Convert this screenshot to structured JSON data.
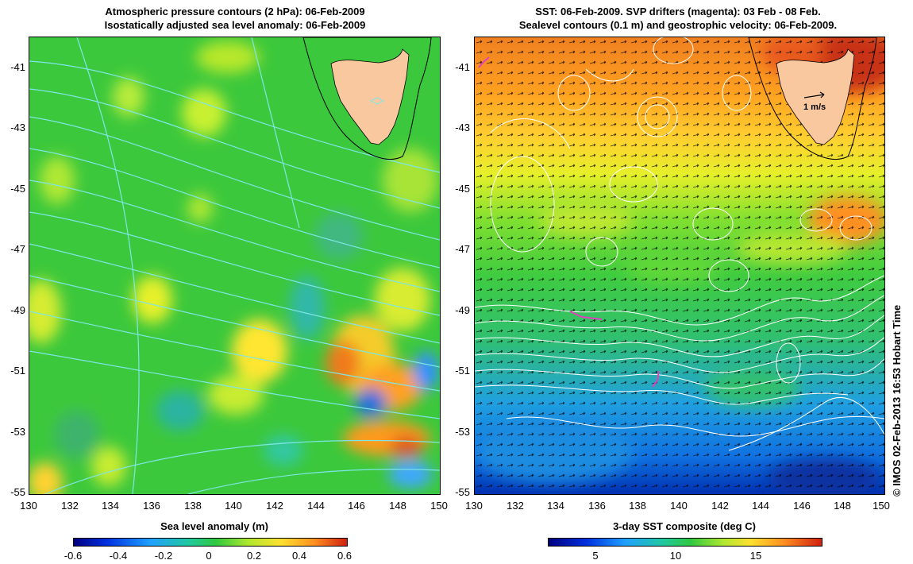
{
  "left_panel": {
    "title_line1": "Atmospheric pressure contours (2 hPa): 06-Feb-2009",
    "title_line2": "Isostatically adjusted sea level anomaly: 06-Feb-2009",
    "y_ticks": [
      "-41",
      "-43",
      "-45",
      "-47",
      "-49",
      "-51",
      "-53",
      "-55"
    ],
    "x_ticks": [
      "130",
      "132",
      "134",
      "136",
      "138",
      "140",
      "142",
      "144",
      "146",
      "148",
      "150"
    ],
    "colorbar_label": "Sea level anomaly (m)",
    "colorbar_ticks": [
      "-0.6",
      "-0.4",
      "-0.2",
      "0",
      "0.2",
      "0.4",
      "0.6"
    ],
    "colorbar_range": [
      -0.6,
      0.6
    ]
  },
  "right_panel": {
    "title_line1": "SST: 06-Feb-2009. SVP drifters (magenta): 03 Feb - 08 Feb.",
    "title_line2": "Sealevel contours (0.1 m) and geostrophic velocity: 06-Feb-2009.",
    "y_ticks": [
      "-41",
      "-43",
      "-45",
      "-47",
      "-49",
      "-51",
      "-53",
      "-55"
    ],
    "x_ticks": [
      "130",
      "132",
      "134",
      "136",
      "138",
      "140",
      "142",
      "144",
      "146",
      "148",
      "150"
    ],
    "scale_arrow_label": "1 m/s",
    "colorbar_label": "3-day SST composite (deg C)",
    "colorbar_ticks": [
      "5",
      "10",
      "15"
    ],
    "colorbar_range": [
      2,
      19
    ]
  },
  "credit": "© IMOS 02-Feb-2013 16:53 Hobart Time",
  "map_extent": {
    "lon": [
      130,
      150
    ],
    "lat": [
      -55,
      -40
    ]
  },
  "colors": {
    "land": "#f9c89f",
    "pressure_contour": "#7fe6e6",
    "sealevel_contour": "#ffffff",
    "drifter": "#e040c0"
  }
}
